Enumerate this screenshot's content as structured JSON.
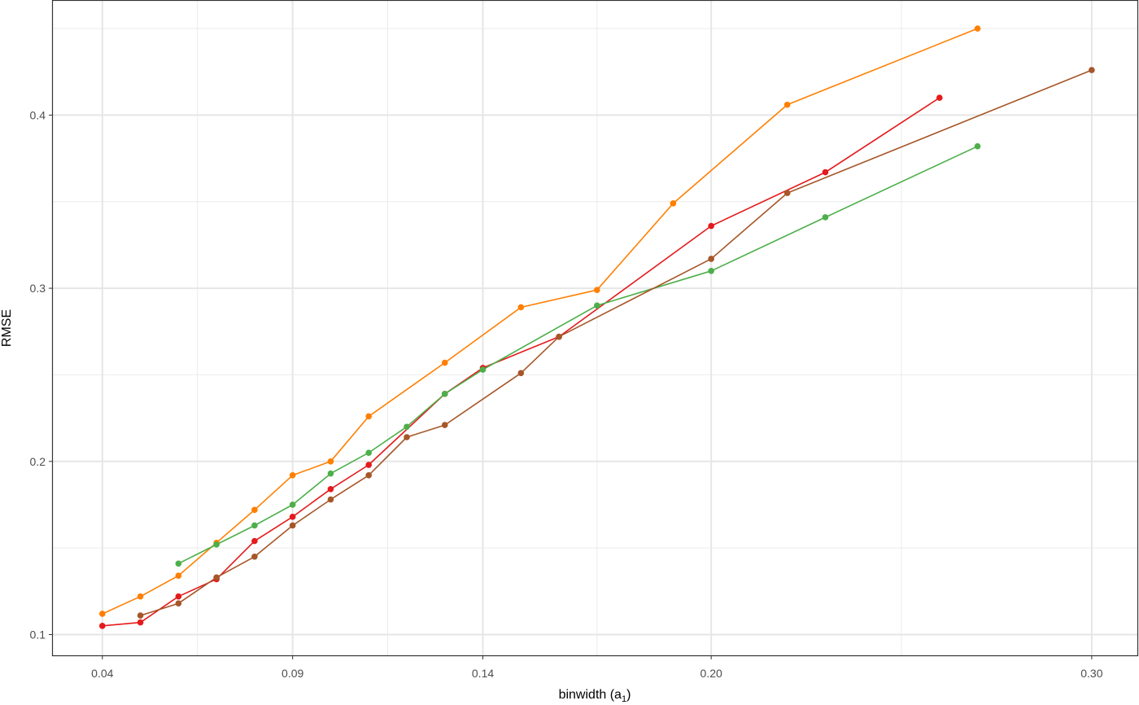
{
  "chart_data": {
    "type": "line",
    "xlabel": "binwidth (a",
    "xlabel_subscript": "1",
    "xlabel_suffix": ")",
    "ylabel": "RMSE",
    "xlim": [
      0.027,
      0.312
    ],
    "ylim": [
      0.088,
      0.466
    ],
    "x_ticks": [
      {
        "value": 0.04,
        "label": "0.04"
      },
      {
        "value": 0.09,
        "label": "0.09"
      },
      {
        "value": 0.14,
        "label": "0.14"
      },
      {
        "value": 0.2,
        "label": "0.20"
      },
      {
        "value": 0.3,
        "label": "0.30"
      }
    ],
    "y_ticks": [
      {
        "value": 0.1,
        "label": "0.1"
      },
      {
        "value": 0.2,
        "label": "0.2"
      },
      {
        "value": 0.3,
        "label": "0.3"
      },
      {
        "value": 0.4,
        "label": "0.4"
      }
    ],
    "grid": true,
    "legend": "none",
    "series": [
      {
        "color": "#FF7F00",
        "x": [
          0.04,
          0.05,
          0.06,
          0.07,
          0.08,
          0.09,
          0.1,
          0.11,
          0.13,
          0.15,
          0.17,
          0.19,
          0.22,
          0.27
        ],
        "y": [
          0.112,
          0.122,
          0.134,
          0.153,
          0.172,
          0.192,
          0.2,
          0.226,
          0.257,
          0.289,
          0.299,
          0.349,
          0.406,
          0.45
        ]
      },
      {
        "color": "#E41A1C",
        "x": [
          0.04,
          0.05,
          0.06,
          0.07,
          0.08,
          0.09,
          0.1,
          0.11,
          0.13,
          0.14,
          0.16,
          0.2,
          0.23,
          0.26
        ],
        "y": [
          0.105,
          0.107,
          0.122,
          0.132,
          0.154,
          0.168,
          0.184,
          0.198,
          0.239,
          0.254,
          0.272,
          0.336,
          0.367,
          0.41
        ]
      },
      {
        "color": "#4DAF4A",
        "x": [
          0.06,
          0.07,
          0.08,
          0.09,
          0.1,
          0.11,
          0.12,
          0.13,
          0.14,
          0.17,
          0.2,
          0.23,
          0.27
        ],
        "y": [
          0.141,
          0.152,
          0.163,
          0.175,
          0.193,
          0.205,
          0.22,
          0.239,
          0.253,
          0.29,
          0.31,
          0.341,
          0.382
        ]
      },
      {
        "color": "#A65628",
        "x": [
          0.05,
          0.06,
          0.07,
          0.08,
          0.09,
          0.1,
          0.11,
          0.12,
          0.13,
          0.15,
          0.16,
          0.2,
          0.22,
          0.3
        ],
        "y": [
          0.111,
          0.118,
          0.133,
          0.145,
          0.163,
          0.178,
          0.192,
          0.214,
          0.221,
          0.251,
          0.272,
          0.317,
          0.355,
          0.426
        ]
      }
    ]
  }
}
